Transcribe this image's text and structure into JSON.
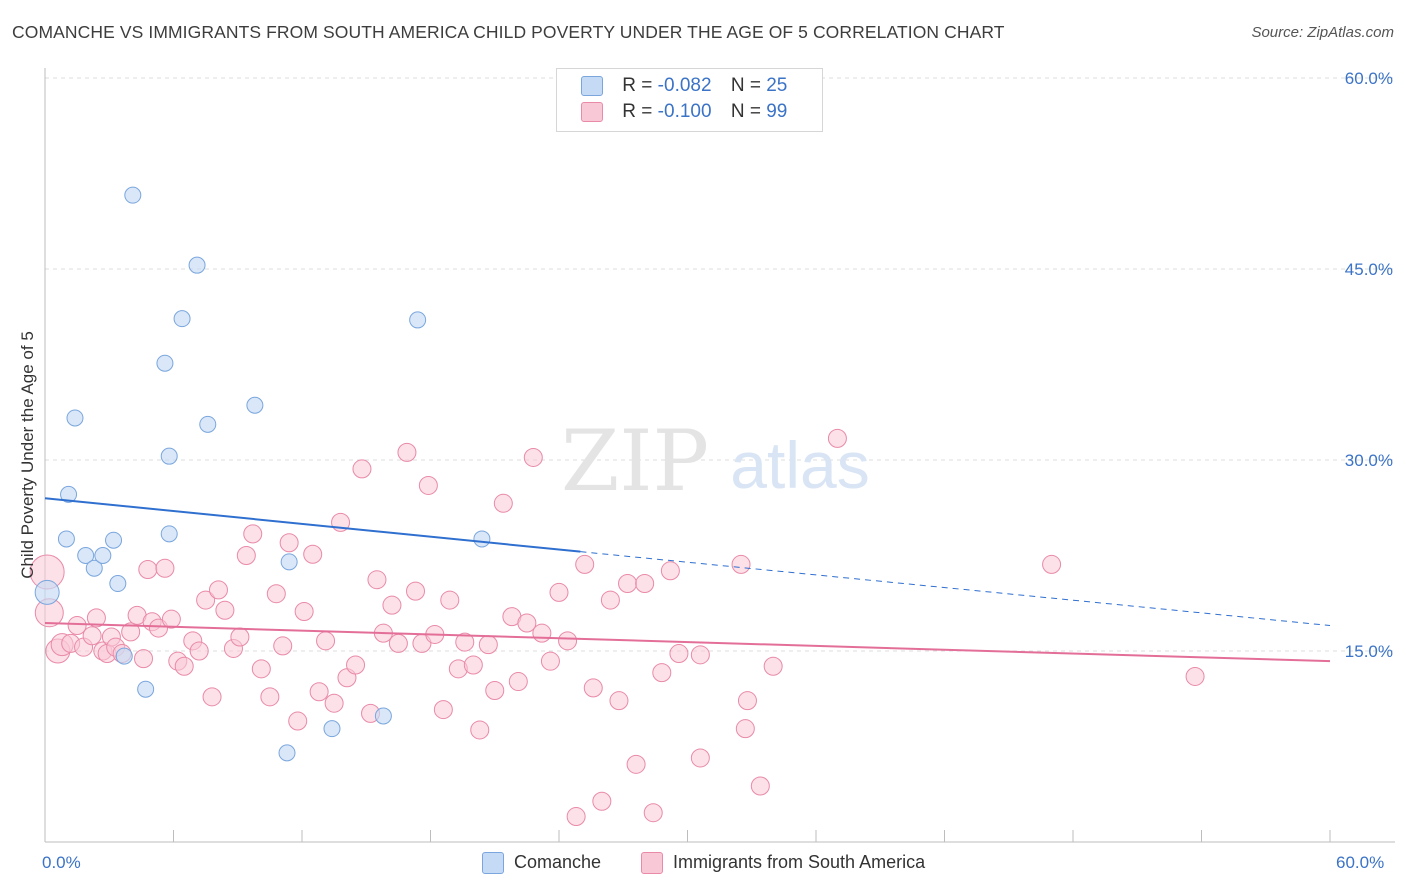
{
  "title": "COMANCHE VS IMMIGRANTS FROM SOUTH AMERICA CHILD POVERTY UNDER THE AGE OF 5 CORRELATION CHART",
  "source": "Source: ZipAtlas.com",
  "watermark": {
    "zip": "ZIP",
    "atlas": "atlas"
  },
  "legend": {
    "rows": [
      {
        "r_label": "R =",
        "r_value": "-0.082",
        "n_label": "N =",
        "n_value": "25"
      },
      {
        "r_label": "R =",
        "r_value": "-0.100",
        "n_label": "N =",
        "n_value": "99"
      }
    ]
  },
  "bottom_legend": {
    "series1": "Comanche",
    "series2": "Immigrants from South America"
  },
  "colors": {
    "comanche_fill": "#c5daf5",
    "comanche_stroke": "#7aa6dd",
    "comanche_line": "#2f6fcf",
    "immigrants_fill": "#f9c8d7",
    "immigrants_stroke": "#e98aa8",
    "immigrants_line": "#e36f98",
    "tick_text": "#3b73c6",
    "grid": "#dcdcdc"
  },
  "chart_data": {
    "type": "scatter",
    "title": "COMANCHE VS IMMIGRANTS FROM SOUTH AMERICA CHILD POVERTY UNDER THE AGE OF 5 CORRELATION CHART",
    "xlabel": "",
    "ylabel": "Child Poverty Under the Age of 5",
    "xlim": [
      0,
      60
    ],
    "ylim": [
      0,
      60
    ],
    "x_tick_labels": [
      "0.0%",
      "60.0%"
    ],
    "y_ticks": [
      15,
      30,
      45,
      60
    ],
    "y_tick_labels": [
      "15.0%",
      "30.0%",
      "45.0%",
      "60.0%"
    ],
    "grid": true,
    "legend_position": "top-center",
    "series": [
      {
        "name": "Comanche",
        "R": -0.082,
        "N": 25,
        "trend": {
          "x": [
            0,
            25
          ],
          "y": [
            27.0,
            22.8
          ],
          "dashed_to": [
            60,
            17.0
          ]
        },
        "points": [
          [
            0.1,
            19.6
          ],
          [
            1.0,
            23.8
          ],
          [
            1.1,
            27.3
          ],
          [
            1.4,
            33.3
          ],
          [
            1.9,
            22.5
          ],
          [
            2.3,
            21.5
          ],
          [
            2.7,
            22.5
          ],
          [
            3.2,
            23.7
          ],
          [
            3.4,
            20.3
          ],
          [
            3.7,
            14.6
          ],
          [
            4.1,
            50.8
          ],
          [
            4.7,
            12.0
          ],
          [
            5.6,
            37.6
          ],
          [
            5.8,
            24.2
          ],
          [
            5.8,
            30.3
          ],
          [
            6.4,
            41.1
          ],
          [
            7.1,
            45.3
          ],
          [
            7.6,
            32.8
          ],
          [
            9.8,
            34.3
          ],
          [
            11.3,
            7.0
          ],
          [
            11.4,
            22.0
          ],
          [
            13.4,
            8.9
          ],
          [
            15.8,
            9.9
          ],
          [
            17.4,
            41.0
          ],
          [
            20.4,
            23.8
          ]
        ]
      },
      {
        "name": "Immigrants from South America",
        "R": -0.1,
        "N": 99,
        "trend": {
          "x": [
            0,
            60
          ],
          "y": [
            17.2,
            14.2
          ]
        },
        "points": [
          [
            0.1,
            21.2
          ],
          [
            0.2,
            18.0
          ],
          [
            0.6,
            15.0
          ],
          [
            0.8,
            15.5
          ],
          [
            1.2,
            15.6
          ],
          [
            1.5,
            17.0
          ],
          [
            1.8,
            15.3
          ],
          [
            2.2,
            16.2
          ],
          [
            2.4,
            17.6
          ],
          [
            2.7,
            15.0
          ],
          [
            2.9,
            14.8
          ],
          [
            3.1,
            16.1
          ],
          [
            3.3,
            15.3
          ],
          [
            3.6,
            14.8
          ],
          [
            4.0,
            16.5
          ],
          [
            4.3,
            17.8
          ],
          [
            4.6,
            14.4
          ],
          [
            4.8,
            21.4
          ],
          [
            5.0,
            17.3
          ],
          [
            5.3,
            16.8
          ],
          [
            5.6,
            21.5
          ],
          [
            5.9,
            17.5
          ],
          [
            6.2,
            14.2
          ],
          [
            6.5,
            13.8
          ],
          [
            6.9,
            15.8
          ],
          [
            7.2,
            15.0
          ],
          [
            7.5,
            19.0
          ],
          [
            7.8,
            11.4
          ],
          [
            8.1,
            19.8
          ],
          [
            8.4,
            18.2
          ],
          [
            8.8,
            15.2
          ],
          [
            9.1,
            16.1
          ],
          [
            9.4,
            22.5
          ],
          [
            9.7,
            24.2
          ],
          [
            10.1,
            13.6
          ],
          [
            10.5,
            11.4
          ],
          [
            10.8,
            19.5
          ],
          [
            11.1,
            15.4
          ],
          [
            11.4,
            23.5
          ],
          [
            11.8,
            9.5
          ],
          [
            12.1,
            18.1
          ],
          [
            12.5,
            22.6
          ],
          [
            12.8,
            11.8
          ],
          [
            13.1,
            15.8
          ],
          [
            13.5,
            10.9
          ],
          [
            13.8,
            25.1
          ],
          [
            14.1,
            12.9
          ],
          [
            14.5,
            13.9
          ],
          [
            14.8,
            29.3
          ],
          [
            15.2,
            10.1
          ],
          [
            15.5,
            20.6
          ],
          [
            15.8,
            16.4
          ],
          [
            16.2,
            18.6
          ],
          [
            16.5,
            15.6
          ],
          [
            16.9,
            30.6
          ],
          [
            17.3,
            19.7
          ],
          [
            17.6,
            15.6
          ],
          [
            17.9,
            28.0
          ],
          [
            18.2,
            16.3
          ],
          [
            18.6,
            10.4
          ],
          [
            18.9,
            19.0
          ],
          [
            19.3,
            13.6
          ],
          [
            19.6,
            15.7
          ],
          [
            20.0,
            13.9
          ],
          [
            20.3,
            8.8
          ],
          [
            20.7,
            15.5
          ],
          [
            21.0,
            11.9
          ],
          [
            21.4,
            26.6
          ],
          [
            21.8,
            17.7
          ],
          [
            22.1,
            12.6
          ],
          [
            22.5,
            17.2
          ],
          [
            22.8,
            30.2
          ],
          [
            23.2,
            16.4
          ],
          [
            23.6,
            14.2
          ],
          [
            24.0,
            19.6
          ],
          [
            24.4,
            15.8
          ],
          [
            24.8,
            2.0
          ],
          [
            25.2,
            21.8
          ],
          [
            25.6,
            12.1
          ],
          [
            26.0,
            3.2
          ],
          [
            26.4,
            19.0
          ],
          [
            26.8,
            11.1
          ],
          [
            27.2,
            20.3
          ],
          [
            27.6,
            6.1
          ],
          [
            28.0,
            20.3
          ],
          [
            28.4,
            2.3
          ],
          [
            28.8,
            13.3
          ],
          [
            29.2,
            21.3
          ],
          [
            29.6,
            14.8
          ],
          [
            30.6,
            14.7
          ],
          [
            30.6,
            6.6
          ],
          [
            32.5,
            21.8
          ],
          [
            32.7,
            8.9
          ],
          [
            32.8,
            11.1
          ],
          [
            33.4,
            4.4
          ],
          [
            34.0,
            13.8
          ],
          [
            37.0,
            31.7
          ],
          [
            47.0,
            21.8
          ],
          [
            53.7,
            13.0
          ]
        ]
      }
    ]
  }
}
